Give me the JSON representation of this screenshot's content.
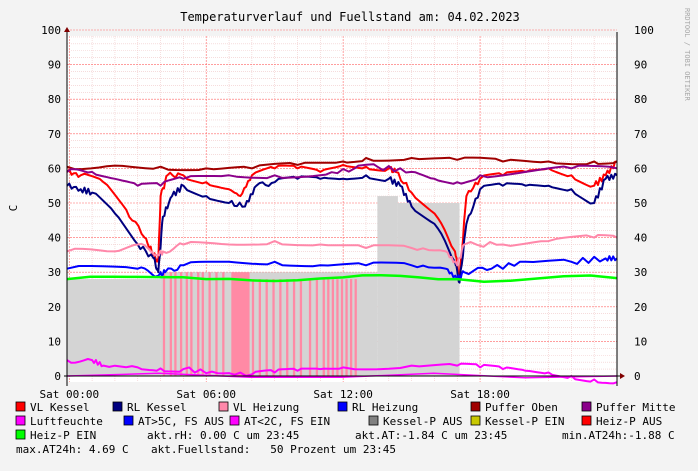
{
  "chart_data": {
    "type": "line",
    "title": "Temperaturverlauf und Fuellstand am: 04.02.2023",
    "ylabel": "C",
    "watermark": "RRDTOOL / TOBI OETIKER",
    "ylim": [
      0,
      100
    ],
    "yticks": [
      0,
      10,
      20,
      30,
      40,
      50,
      60,
      70,
      80,
      90,
      100
    ],
    "xlim": [
      -0.1,
      24
    ],
    "xticks": [
      {
        "x": 0,
        "label": "Sat 00:00"
      },
      {
        "x": 6,
        "label": "Sat 06:00"
      },
      {
        "x": 12,
        "label": "Sat 12:00"
      },
      {
        "x": 18,
        "label": "Sat 18:00"
      }
    ],
    "grid": true,
    "legend_position": "bottom",
    "legend": [
      {
        "name": "VL Kessel",
        "color": "#ff0000"
      },
      {
        "name": "RL Kessel",
        "color": "#000080"
      },
      {
        "name": "VL Heizung",
        "color": "#ff88aa"
      },
      {
        "name": "RL Heizung",
        "color": "#0000ff"
      },
      {
        "name": "Puffer Oben",
        "color": "#a00000"
      },
      {
        "name": "Puffer Mitte",
        "color": "#8b008b"
      },
      {
        "name": "Luftfeuchte",
        "color": "#ff00ff"
      },
      {
        "name": "AT>5C, FS AUS",
        "color": "#0000ff"
      },
      {
        "name": "AT<2C, FS EIN",
        "color": "#ff00ff"
      },
      {
        "name": "Kessel-P AUS",
        "color": "#808080"
      },
      {
        "name": "Kessel-P EIN",
        "color": "#c8c800"
      },
      {
        "name": "Heiz-P AUS",
        "color": "#ff0000"
      },
      {
        "name": "Heiz-P EIN",
        "color": "#00ff00"
      }
    ],
    "info_lines": [
      "akt.rH: 0.00 C um 23:45",
      "akt.AT:-1.84 C um 23:45",
      "min.AT24h:-1.88 C",
      "max.AT24h: 4.69 C",
      "akt.Fuellstand:   50 Prozent um 23:45"
    ],
    "series": [
      {
        "name": "VL Kessel",
        "color": "#ff0000",
        "width": 2,
        "points": [
          [
            -0.1,
            59
          ],
          [
            0.5,
            58
          ],
          [
            1.5,
            56
          ],
          [
            2.5,
            48
          ],
          [
            3.3,
            40
          ],
          [
            3.7,
            35
          ],
          [
            3.9,
            33
          ],
          [
            4.0,
            52
          ],
          [
            4.3,
            58
          ],
          [
            5,
            58
          ],
          [
            6,
            56
          ],
          [
            7,
            54
          ],
          [
            7.5,
            52
          ],
          [
            8,
            58
          ],
          [
            9,
            60
          ],
          [
            10,
            60
          ],
          [
            11,
            59
          ],
          [
            12,
            61
          ],
          [
            13,
            60.5
          ],
          [
            14,
            60
          ],
          [
            14.3,
            59
          ],
          [
            15,
            53
          ],
          [
            16,
            47
          ],
          [
            16.9,
            36
          ],
          [
            17.1,
            28
          ],
          [
            17.4,
            52
          ],
          [
            18,
            57
          ],
          [
            19,
            58
          ],
          [
            20,
            59
          ],
          [
            21,
            60
          ],
          [
            22,
            58
          ],
          [
            23,
            55
          ],
          [
            23.5,
            58
          ],
          [
            24,
            62
          ]
        ]
      },
      {
        "name": "RL Kessel",
        "color": "#000080",
        "width": 2,
        "points": [
          [
            -0.1,
            55
          ],
          [
            0.5,
            54
          ],
          [
            1,
            53
          ],
          [
            2,
            47
          ],
          [
            3,
            38
          ],
          [
            3.7,
            34
          ],
          [
            3.9,
            30
          ],
          [
            4.1,
            46
          ],
          [
            4.5,
            52
          ],
          [
            5,
            55
          ],
          [
            6,
            52
          ],
          [
            7,
            50
          ],
          [
            7.7,
            49
          ],
          [
            8.2,
            55
          ],
          [
            9,
            56
          ],
          [
            10,
            57
          ],
          [
            11,
            57
          ],
          [
            12,
            57
          ],
          [
            13,
            58
          ],
          [
            14,
            57
          ],
          [
            14.5,
            55
          ],
          [
            15,
            49
          ],
          [
            16,
            44
          ],
          [
            16.9,
            33
          ],
          [
            17.1,
            27
          ],
          [
            17.4,
            44
          ],
          [
            18,
            54
          ],
          [
            19,
            55
          ],
          [
            20,
            55
          ],
          [
            21,
            55
          ],
          [
            22,
            54
          ],
          [
            23,
            50
          ],
          [
            23.5,
            57
          ],
          [
            24,
            58
          ]
        ]
      },
      {
        "name": "VL Heizung",
        "color": "#ff88aa",
        "width": 2,
        "points": [
          [
            -0.1,
            36
          ],
          [
            2,
            36
          ],
          [
            3,
            38
          ],
          [
            3.9,
            35
          ],
          [
            4.1,
            36
          ],
          [
            5,
            38
          ],
          [
            7,
            38
          ],
          [
            9,
            39
          ],
          [
            11,
            38
          ],
          [
            13,
            37
          ],
          [
            15,
            37
          ],
          [
            16.5,
            36
          ],
          [
            17,
            32
          ],
          [
            17.3,
            38
          ],
          [
            19,
            38
          ],
          [
            21,
            39
          ],
          [
            23,
            40
          ],
          [
            24,
            40
          ]
        ]
      },
      {
        "name": "RL Heizung",
        "color": "#0000ff",
        "width": 2,
        "points": [
          [
            -0.1,
            31
          ],
          [
            3,
            31
          ],
          [
            3.9,
            29
          ],
          [
            4.2,
            30
          ],
          [
            5,
            32
          ],
          [
            7,
            33
          ],
          [
            9,
            33
          ],
          [
            11,
            32
          ],
          [
            13,
            32
          ],
          [
            15,
            32
          ],
          [
            16.5,
            31
          ],
          [
            17,
            28
          ],
          [
            17.3,
            30
          ],
          [
            18.5,
            31
          ],
          [
            20,
            33
          ],
          [
            22,
            33
          ],
          [
            23.5,
            34
          ],
          [
            24,
            34
          ]
        ]
      },
      {
        "name": "Puffer Oben",
        "color": "#a00000",
        "width": 2,
        "points": [
          [
            -0.1,
            60.5
          ],
          [
            2,
            60.8
          ],
          [
            4,
            60.5
          ],
          [
            6,
            60
          ],
          [
            8,
            60
          ],
          [
            10,
            61
          ],
          [
            12,
            62
          ],
          [
            13,
            63
          ],
          [
            15,
            63
          ],
          [
            17,
            62.5
          ],
          [
            19,
            62
          ],
          [
            21,
            62
          ],
          [
            23,
            62
          ],
          [
            24,
            62
          ]
        ]
      },
      {
        "name": "Puffer Mitte",
        "color": "#8b008b",
        "width": 2,
        "points": [
          [
            -0.1,
            59
          ],
          [
            1,
            59
          ],
          [
            2,
            57
          ],
          [
            3,
            55
          ],
          [
            4,
            55
          ],
          [
            5,
            57
          ],
          [
            7,
            58
          ],
          [
            9,
            58
          ],
          [
            11,
            58
          ],
          [
            12.5,
            60
          ],
          [
            13.5,
            60.5
          ],
          [
            15,
            59
          ],
          [
            16,
            57
          ],
          [
            17,
            56
          ],
          [
            18,
            58
          ],
          [
            20,
            59
          ],
          [
            22,
            60
          ],
          [
            24,
            60
          ]
        ]
      },
      {
        "name": "Luftfeuchte",
        "color": "#ff00ff",
        "width": 2,
        "points": [
          [
            -0.1,
            4.6
          ],
          [
            1,
            4.6
          ],
          [
            1.5,
            3
          ],
          [
            3,
            2.5
          ],
          [
            4,
            2.2
          ],
          [
            5,
            2
          ],
          [
            6.5,
            0.8
          ],
          [
            8,
            0.5
          ],
          [
            9,
            1
          ],
          [
            10,
            1.5
          ],
          [
            11,
            2
          ],
          [
            12,
            2.5
          ],
          [
            15,
            3
          ],
          [
            17,
            3
          ],
          [
            18,
            2.5
          ],
          [
            19,
            2
          ],
          [
            20,
            1.5
          ],
          [
            21,
            1
          ],
          [
            22,
            0
          ],
          [
            23,
            -1
          ],
          [
            24,
            -1.8
          ]
        ]
      },
      {
        "name": "AT<2C, FS EIN",
        "color": "#ff00ff",
        "width": 1.5,
        "points": [
          [
            -0.1,
            0
          ],
          [
            24,
            0
          ]
        ]
      },
      {
        "name": "Heiz-P EIN",
        "color": "#00ff00",
        "width": 2.5,
        "points": [
          [
            -0.1,
            28
          ],
          [
            6,
            28
          ],
          [
            12,
            28.5
          ],
          [
            17,
            28
          ],
          [
            24,
            28.3
          ]
        ]
      }
    ],
    "areas": [
      {
        "name": "Kessel-P AUS",
        "color": "#d4d4d4",
        "bands": [
          [
            -0.1,
            4.0,
            28
          ],
          [
            4.0,
            13.5,
            30
          ],
          [
            13.5,
            14.4,
            52
          ],
          [
            14.4,
            17.1,
            50
          ]
        ]
      },
      {
        "name": "Heiz-P AUS",
        "color": "#ff8aa5",
        "bands": [
          [
            4.1,
            4.2,
            30
          ],
          [
            4.4,
            4.5,
            30
          ],
          [
            4.6,
            4.7,
            30
          ],
          [
            4.85,
            4.95,
            30
          ],
          [
            5.1,
            5.2,
            30
          ],
          [
            5.3,
            5.4,
            30
          ],
          [
            5.6,
            5.7,
            30
          ],
          [
            5.8,
            5.9,
            30
          ],
          [
            6.1,
            6.2,
            30
          ],
          [
            6.4,
            6.5,
            30
          ],
          [
            6.7,
            6.8,
            30
          ],
          [
            7.1,
            7.9,
            30
          ],
          [
            8.0,
            8.1,
            28
          ],
          [
            8.3,
            8.4,
            28
          ],
          [
            8.6,
            8.7,
            28
          ],
          [
            8.9,
            9.0,
            28
          ],
          [
            9.2,
            9.3,
            28
          ],
          [
            9.5,
            9.6,
            28
          ],
          [
            9.8,
            9.9,
            28
          ],
          [
            10.1,
            10.2,
            28
          ],
          [
            10.5,
            10.6,
            28
          ],
          [
            10.8,
            10.9,
            28
          ],
          [
            11.1,
            11.2,
            28
          ],
          [
            11.3,
            11.4,
            28
          ],
          [
            11.5,
            11.6,
            28
          ],
          [
            11.7,
            11.8,
            28
          ],
          [
            11.9,
            12.0,
            28
          ],
          [
            12.1,
            12.2,
            28
          ],
          [
            12.3,
            12.4,
            28
          ],
          [
            12.5,
            12.6,
            28
          ]
        ]
      }
    ]
  }
}
